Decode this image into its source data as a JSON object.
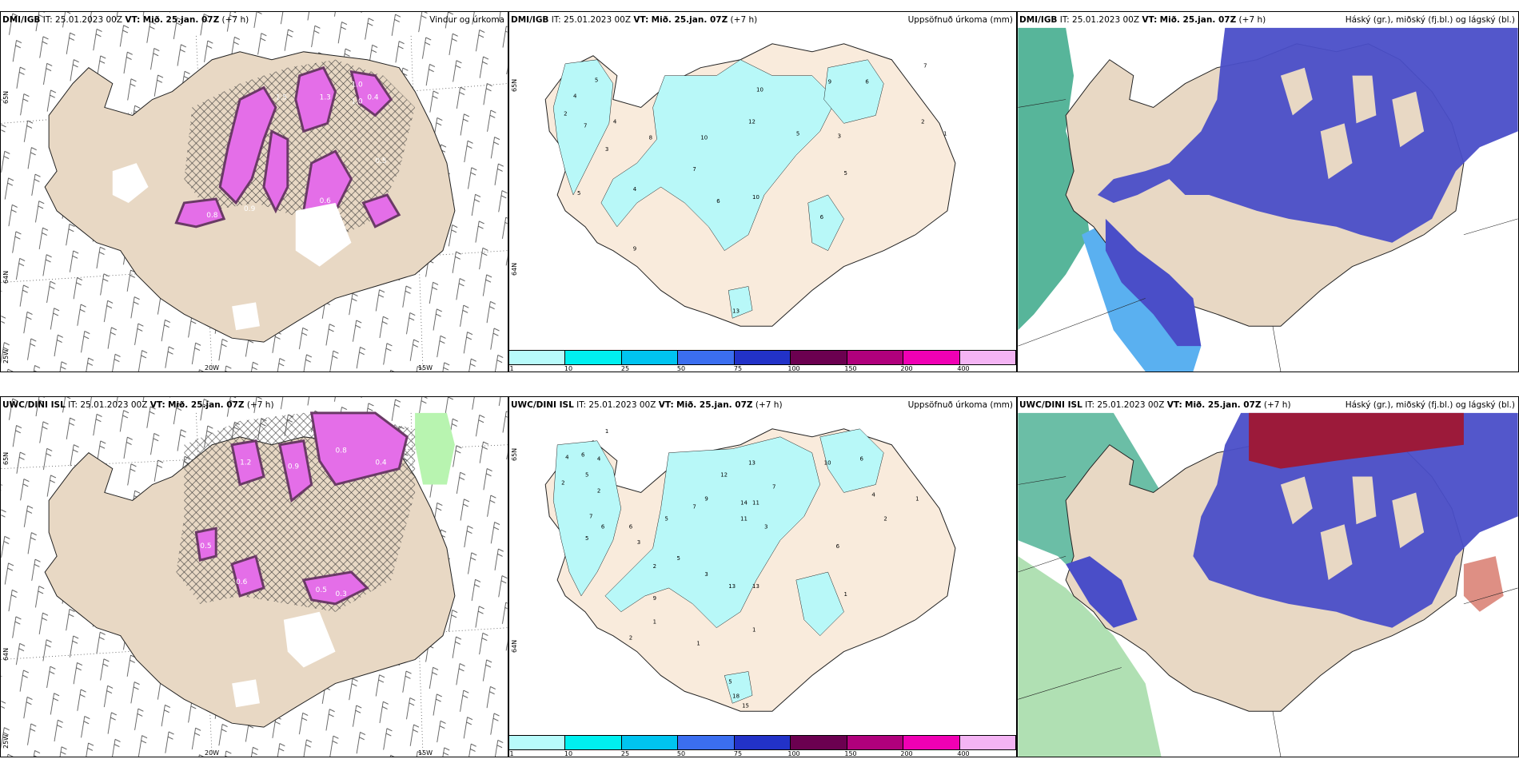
{
  "panels": [
    {
      "id": "p1",
      "model": "DMI/IGB",
      "it_label": "IT:",
      "it": "25.01.2023 00Z",
      "vt_label": "VT:",
      "vt": "Mið. 25.jan. 07Z",
      "lead": "(+7 h)",
      "title": "Vindur og úrkoma"
    },
    {
      "id": "p2",
      "model": "DMI/IGB",
      "it_label": "IT:",
      "it": "25.01.2023 00Z",
      "vt_label": "VT:",
      "vt": "Mið. 25.jan. 07Z",
      "lead": "(+7 h)",
      "title": "Uppsöfnuð úrkoma (mm)"
    },
    {
      "id": "p3",
      "model": "DMI/IGB",
      "it_label": "IT:",
      "it": "25.01.2023 00Z",
      "vt_label": "VT:",
      "vt": "Mið. 25.jan. 07Z",
      "lead": "(+7 h)",
      "title": "Háský (gr.), miðský (fj.bl.) og lágský (bl.)"
    },
    {
      "id": "p4",
      "model": "UWC/DINI ISL",
      "it_label": "IT:",
      "it": "25.01.2023 00Z",
      "vt_label": "VT:",
      "vt": "Mið. 25.jan. 07Z",
      "lead": "(+7 h)",
      "title": ""
    },
    {
      "id": "p5",
      "model": "UWC/DINI ISL",
      "it_label": "IT:",
      "it": "25.01.2023 00Z",
      "vt_label": "VT:",
      "vt": "Mið. 25.jan. 07Z",
      "lead": "(+7 h)",
      "title": "Uppsöfnuð úrkoma (mm)"
    },
    {
      "id": "p6",
      "model": "UWC/DINI ISL",
      "it_label": "IT:",
      "it": "25.01.2023 00Z",
      "vt_label": "VT:",
      "vt": "Mið. 25.jan. 07Z",
      "lead": "(+7 h)",
      "title": "Háský (gr.), miðský (fj.bl.) og lágský (bl.)"
    }
  ],
  "axes": {
    "lon": [
      "20W",
      "15W"
    ],
    "lat_left": [
      "65N",
      "64N",
      "25W"
    ],
    "lat_right": [
      "65N",
      "64N"
    ]
  },
  "colorbar": {
    "labels": [
      "1",
      "10",
      "25",
      "50",
      "75",
      "100",
      "150",
      "200",
      "400"
    ],
    "colors": [
      "#b8fbfb",
      "#00f0f0",
      "#00c4f0",
      "#3b6ef0",
      "#2232c8",
      "#6b0050",
      "#b0007c",
      "#f000b4",
      "#f4b4f4"
    ]
  },
  "precip_labels": {
    "p2": [
      "5",
      "4",
      "2",
      "7",
      "4",
      "3",
      "5",
      "4",
      "6",
      "8",
      "7",
      "9",
      "10",
      "12",
      "10",
      "5",
      "3",
      "9",
      "6",
      "5",
      "2",
      "1",
      "10",
      "6",
      "13",
      "7"
    ],
    "p5": [
      "1",
      "4",
      "6",
      "4",
      "5",
      "2",
      "2",
      "7",
      "6",
      "5",
      "6",
      "5",
      "3",
      "12",
      "13",
      "9",
      "7",
      "7",
      "14",
      "11",
      "11",
      "3",
      "10",
      "6",
      "4",
      "2",
      "1",
      "13",
      "13",
      "9",
      "6",
      "3",
      "2",
      "5",
      "2",
      "1",
      "1",
      "1",
      "1",
      "5",
      "18",
      "15"
    ]
  },
  "wind_labels": {
    "p1": [
      "1.0",
      "1.0",
      "1.3",
      "1.5",
      "0.9",
      "0.8",
      "0.6",
      "0.5",
      "0.4"
    ],
    "p4": [
      "0.8",
      "0.4",
      "1.2",
      "0.9",
      "0.6",
      "0.5",
      "0.3",
      "0.5"
    ]
  },
  "colors": {
    "land": "#e8d8c4",
    "land_light": "#f9ebdc",
    "cyan": "#b8f8f8",
    "magenta": "#e46ee8",
    "dark_purple": "#6a3a66",
    "low_cloud": "#4a4ec8",
    "mid_cloud": "#5ab0f0",
    "high_cloud": "#3aa888",
    "red_cloud": "#9c1a3a"
  }
}
